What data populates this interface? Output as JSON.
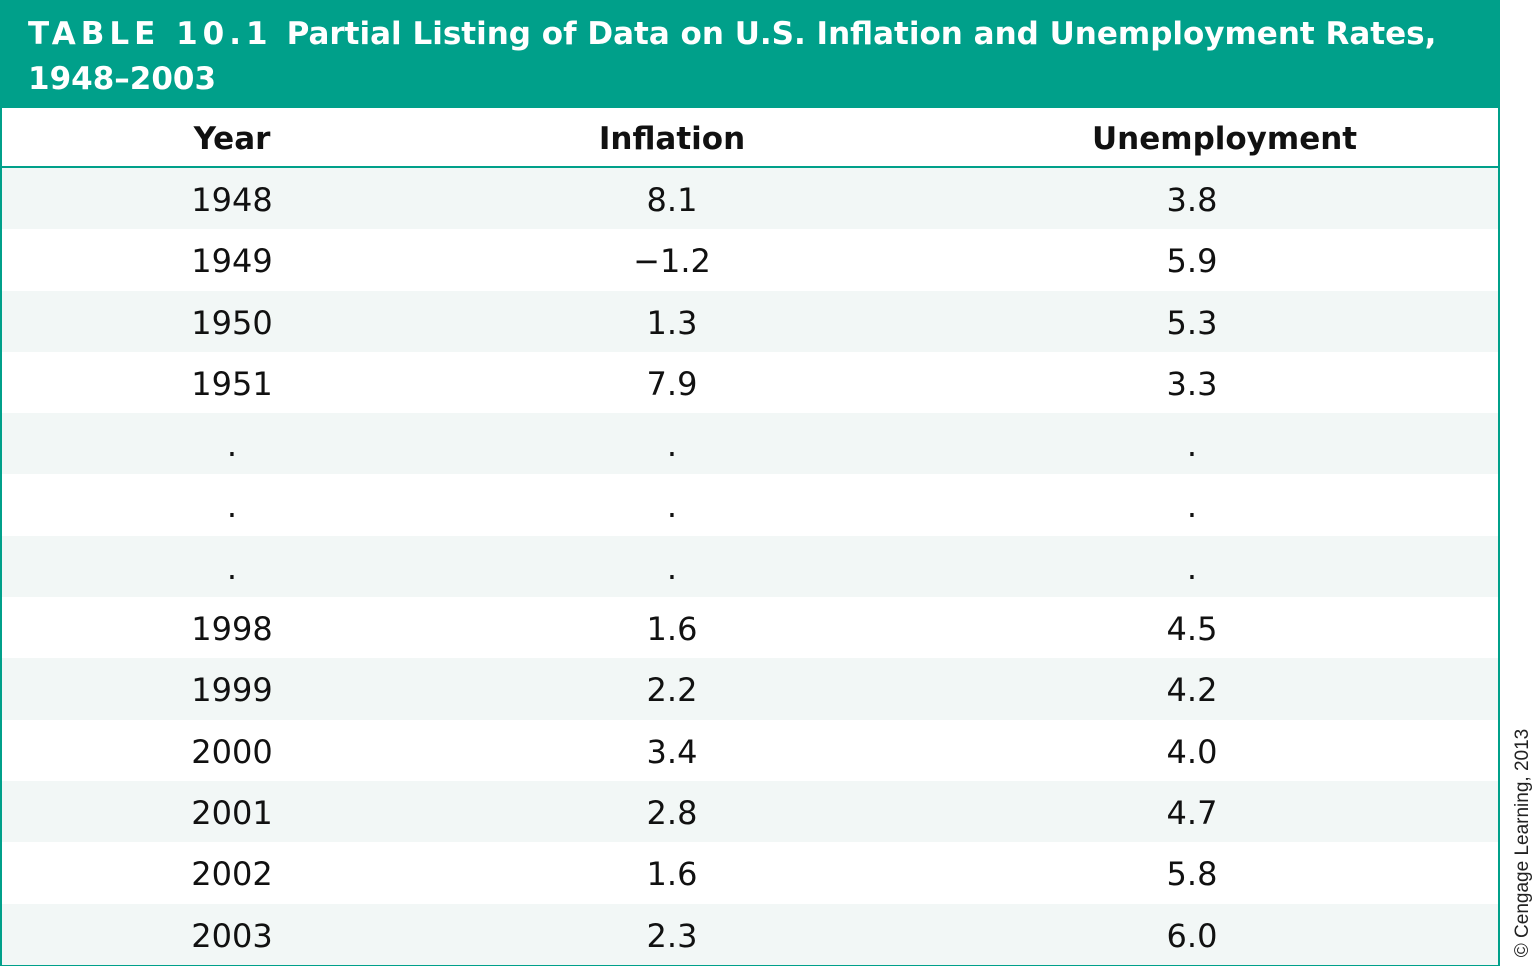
{
  "title": {
    "label": "TABLE 10.1",
    "text": "Partial Listing of Data on U.S. Inflation and Unemployment Rates,",
    "text_line2": "1948–2003"
  },
  "columns": [
    "Year",
    "Inflation",
    "Unemployment"
  ],
  "rows": [
    [
      "1948",
      "8.1",
      "3.8"
    ],
    [
      "1949",
      "−1.2",
      "5.9"
    ],
    [
      "1950",
      "1.3",
      "5.3"
    ],
    [
      "1951",
      "7.9",
      "3.3"
    ],
    [
      ".",
      ".",
      "."
    ],
    [
      ".",
      ".",
      "."
    ],
    [
      ".",
      ".",
      "."
    ],
    [
      "1998",
      "1.6",
      "4.5"
    ],
    [
      "1999",
      "2.2",
      "4.2"
    ],
    [
      "2000",
      "3.4",
      "4.0"
    ],
    [
      "2001",
      "2.8",
      "4.7"
    ],
    [
      "2002",
      "1.6",
      "5.8"
    ],
    [
      "2003",
      "2.3",
      "6.0"
    ]
  ],
  "copyright": "© Cengage Learning, 2013",
  "colors": {
    "accent": "#00a08a",
    "row_shade": "#f2f7f6"
  }
}
